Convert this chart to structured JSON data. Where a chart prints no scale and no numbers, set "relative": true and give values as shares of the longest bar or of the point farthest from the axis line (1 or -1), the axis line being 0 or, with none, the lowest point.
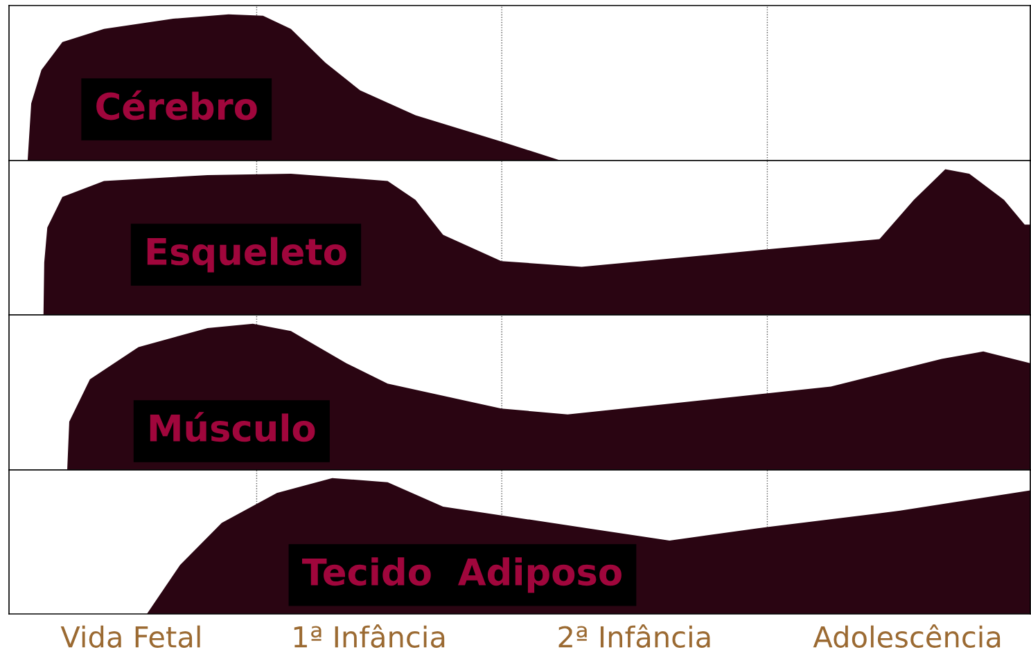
{
  "chart_data": [
    {
      "type": "area",
      "relative": true,
      "xlim": [
        0,
        4
      ],
      "tick_labels": false,
      "grid": false,
      "annotations": [
        "Cérebro"
      ],
      "ref_lines": [
        {
          "axis": "x",
          "value": 0.97,
          "line_style": "dotted",
          "color": "#555555"
        },
        {
          "axis": "x",
          "value": 1.93,
          "line_style": "dotted",
          "color": "#555555"
        },
        {
          "axis": "x",
          "value": 2.97,
          "line_style": "dotted",
          "color": "#555555"
        }
      ],
      "series": [
        {
          "color": "#2a0512",
          "x": [
            0.073,
            0.087,
            0.127,
            0.209,
            0.372,
            0.643,
            0.86,
            0.995,
            1.104,
            1.239,
            1.375,
            1.592,
            1.928,
            2.161,
            4
          ],
          "values": [
            0,
            0.39,
            0.62,
            0.81,
            0.9,
            0.97,
            1.0,
            0.99,
            0.9,
            0.67,
            0.48,
            0.31,
            0.13,
            0,
            0
          ]
        }
      ]
    },
    {
      "type": "area",
      "relative": true,
      "xlim": [
        0,
        4
      ],
      "tick_labels": false,
      "grid": false,
      "annotations": [
        "Esqueleto"
      ],
      "ref_lines": [
        {
          "axis": "x",
          "value": 0.97,
          "line_style": "dotted",
          "color": "#555555"
        },
        {
          "axis": "x",
          "value": 1.93,
          "line_style": "dotted",
          "color": "#555555"
        },
        {
          "axis": "x",
          "value": 2.97,
          "line_style": "dotted",
          "color": "#555555"
        }
      ],
      "series": [
        {
          "color": "#2a0512",
          "x": [
            0.135,
            0.138,
            0.15,
            0.209,
            0.372,
            0.778,
            1.104,
            1.483,
            1.592,
            1.7,
            1.928,
            2.243,
            2.969,
            3.409,
            3.544,
            3.667,
            3.761,
            3.897,
            3.978,
            4
          ],
          "values": [
            0,
            0.36,
            0.6,
            0.81,
            0.92,
            0.96,
            0.97,
            0.92,
            0.79,
            0.55,
            0.37,
            0.33,
            0.45,
            0.52,
            0.79,
            1.0,
            0.97,
            0.79,
            0.62,
            0.62
          ]
        }
      ]
    },
    {
      "type": "area",
      "relative": true,
      "xlim": [
        0,
        4
      ],
      "tick_labels": false,
      "grid": false,
      "annotations": [
        "Músculo"
      ],
      "ref_lines": [
        {
          "axis": "x",
          "value": 0.97,
          "line_style": "dotted",
          "color": "#555555"
        },
        {
          "axis": "x",
          "value": 1.93,
          "line_style": "dotted",
          "color": "#555555"
        },
        {
          "axis": "x",
          "value": 2.97,
          "line_style": "dotted",
          "color": "#555555"
        }
      ],
      "series": [
        {
          "color": "#2a0512",
          "x": [
            0.228,
            0.236,
            0.317,
            0.507,
            0.778,
            0.955,
            1.104,
            1.321,
            1.483,
            1.928,
            2.188,
            2.677,
            3.219,
            3.653,
            3.816,
            4
          ],
          "values": [
            0,
            0.33,
            0.62,
            0.84,
            0.97,
            1.0,
            0.95,
            0.73,
            0.59,
            0.42,
            0.38,
            0.47,
            0.57,
            0.76,
            0.81,
            0.73
          ]
        }
      ]
    },
    {
      "type": "area",
      "relative": true,
      "xlim": [
        0,
        4
      ],
      "tick_labels": "x",
      "grid": false,
      "annotations": [
        "Tecido  Adiposo"
      ],
      "xticks": [
        {
          "value": 0.48,
          "label": "Vida Fetal"
        },
        {
          "value": 1.41,
          "label": "1ª Infância"
        },
        {
          "value": 2.45,
          "label": "2ª Infância"
        },
        {
          "value": 3.52,
          "label": "Adolescência"
        }
      ],
      "ref_lines": [
        {
          "axis": "x",
          "value": 0.97,
          "line_style": "dotted",
          "color": "#555555"
        },
        {
          "axis": "x",
          "value": 1.93,
          "line_style": "dotted",
          "color": "#555555"
        },
        {
          "axis": "x",
          "value": 2.97,
          "line_style": "dotted",
          "color": "#555555"
        }
      ],
      "series": [
        {
          "color": "#2a0512",
          "x": [
            0.54,
            0.67,
            0.833,
            1.049,
            1.266,
            1.483,
            1.7,
            2.587,
            2.969,
            3.49,
            4
          ],
          "values": [
            0,
            0.36,
            0.67,
            0.89,
            1.0,
            0.97,
            0.79,
            0.54,
            0.64,
            0.76,
            0.91
          ]
        }
      ]
    }
  ]
}
